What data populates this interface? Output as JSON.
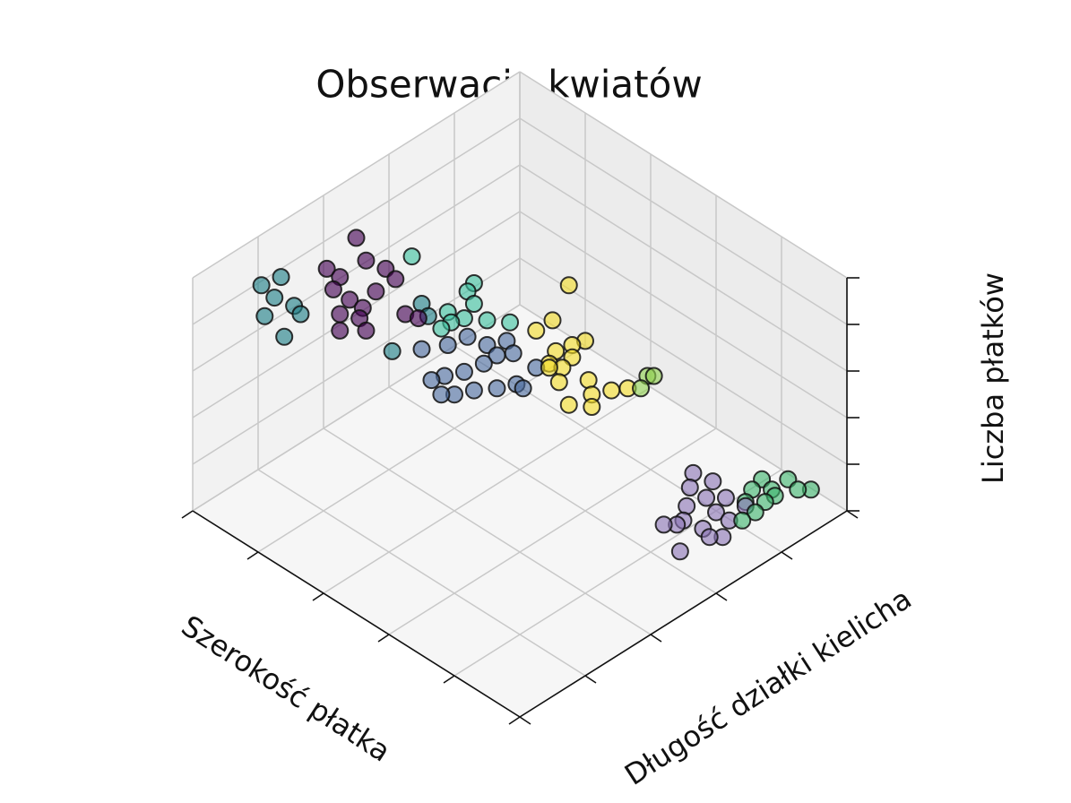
{
  "chart_data": {
    "type": "scatter3d",
    "title": "Obserwacje kwiatów",
    "x_label": "Szerokość płatka",
    "y_label": "Długość działki kielicha",
    "z_label": "Liczba płatków",
    "xlim": [
      0,
      1
    ],
    "ylim": [
      0,
      1
    ],
    "zlim": [
      0,
      1
    ],
    "xticks": [
      0,
      0.2,
      0.4,
      0.6,
      0.8,
      1
    ],
    "yticks": [
      0,
      0.2,
      0.4,
      0.6,
      0.8,
      1
    ],
    "zticks": [
      0,
      0.2,
      0.4,
      0.6,
      0.8,
      1
    ],
    "grid": true,
    "series": [
      {
        "color": "#440154",
        "x": [
          0.04,
          0.07,
          0.11,
          0.11,
          0.16,
          0.2,
          0.13,
          0.18,
          0.22,
          0.2,
          0.2,
          0.24,
          0.28,
          0.3,
          0.33,
          0.24
        ],
        "y": [
          0.54,
          0.66,
          0.66,
          0.58,
          0.57,
          0.58,
          0.7,
          0.7,
          0.7,
          0.64,
          0.75,
          0.79,
          0.75,
          0.65,
          0.64,
          0.73
        ],
        "z": [
          0.8,
          0.8,
          0.8,
          0.8,
          0.8,
          0.8,
          0.8,
          0.8,
          0.8,
          0.8,
          0.8,
          0.8,
          0.8,
          0.8,
          0.8,
          0.8
        ]
      },
      {
        "color": "#1f7f87",
        "x": [
          0.01,
          0.02,
          0.06,
          0.09,
          0.11,
          0.14,
          0.17,
          0.37,
          0.34,
          0.3
        ],
        "y": [
          0.8,
          0.75,
          0.81,
          0.87,
          0.8,
          0.81,
          0.89,
          0.76,
          0.62,
          0.6
        ],
        "z": [
          0.8,
          0.8,
          0.8,
          0.8,
          0.8,
          0.8,
          0.8,
          0.8,
          0.8,
          0.8
        ]
      },
      {
        "color": "#3ec1a0",
        "x": [
          0.17,
          0.33,
          0.34,
          0.38,
          0.36,
          0.4,
          0.44,
          0.48,
          0.39,
          0.39
        ],
        "y": [
          0.5,
          0.47,
          0.5,
          0.52,
          0.58,
          0.57,
          0.54,
          0.51,
          0.63,
          0.6
        ],
        "z": [
          0.8,
          0.8,
          0.8,
          0.8,
          0.8,
          0.8,
          0.8,
          0.8,
          0.8,
          0.8
        ]
      },
      {
        "color": "#4a6a9e",
        "x": [
          0.41,
          0.44,
          0.45,
          0.5,
          0.52,
          0.54,
          0.54,
          0.53,
          0.51,
          0.5,
          0.57,
          0.59,
          0.62,
          0.64,
          0.66,
          0.63,
          0.55,
          0.56
        ],
        "y": [
          0.71,
          0.66,
          0.61,
          0.6,
          0.56,
          0.61,
          0.65,
          0.7,
          0.74,
          0.77,
          0.77,
          0.73,
          0.69,
          0.65,
          0.65,
          0.58,
          0.79,
          0.58
        ],
        "z": [
          0.8,
          0.8,
          0.8,
          0.8,
          0.8,
          0.8,
          0.8,
          0.8,
          0.8,
          0.8,
          0.8,
          0.8,
          0.8,
          0.8,
          0.8,
          0.8,
          0.8,
          0.8
        ]
      },
      {
        "color": "#f2dc2a",
        "x": [
          0.48,
          0.54,
          0.54,
          0.62,
          0.63,
          0.64,
          0.64,
          0.67,
          0.66,
          0.7,
          0.74,
          0.78,
          0.77,
          0.81,
          0.8,
          0.82,
          0.65
        ],
        "y": [
          0.33,
          0.44,
          0.49,
          0.51,
          0.47,
          0.44,
          0.55,
          0.54,
          0.5,
          0.58,
          0.53,
          0.56,
          0.62,
          0.59,
          0.52,
          0.49,
          0.56
        ],
        "z": [
          0.8,
          0.8,
          0.8,
          0.8,
          0.8,
          0.8,
          0.8,
          0.8,
          0.8,
          0.8,
          0.8,
          0.8,
          0.8,
          0.8,
          0.8,
          0.8,
          0.8
        ]
      },
      {
        "color": "#8fd14f",
        "x": [
          0.82,
          0.83,
          0.84
        ],
        "y": [
          0.43,
          0.42,
          0.47
        ],
        "z": [
          0.8,
          0.8,
          0.8
        ]
      },
      {
        "color": "#8a75b5",
        "x": [
          0.73,
          0.78,
          0.76,
          0.81,
          0.8,
          0.83,
          0.81,
          0.83,
          0.88,
          0.9,
          0.86,
          0.9,
          0.93,
          0.91,
          0.89,
          0.84
        ],
        "y": [
          0.2,
          0.19,
          0.24,
          0.24,
          0.29,
          0.33,
          0.37,
          0.35,
          0.32,
          0.41,
          0.26,
          0.26,
          0.31,
          0.33,
          0.2,
          0.21
        ],
        "z": [
          0.1,
          0.1,
          0.1,
          0.1,
          0.1,
          0.1,
          0.1,
          0.1,
          0.1,
          0.1,
          0.1,
          0.1,
          0.1,
          0.1,
          0.1,
          0.1
        ]
      },
      {
        "color": "#3fb56e",
        "x": [
          0.85,
          0.89,
          0.89,
          0.86,
          0.88,
          0.91,
          0.91,
          0.92,
          0.92,
          0.95,
          0.93
        ],
        "y": [
          0.11,
          0.12,
          0.07,
          0.15,
          0.19,
          0.16,
          0.13,
          0.24,
          0.2,
          0.06,
          0.08
        ],
        "z": [
          0.1,
          0.1,
          0.1,
          0.1,
          0.1,
          0.1,
          0.1,
          0.1,
          0.1,
          0.1,
          0.1
        ]
      }
    ]
  }
}
